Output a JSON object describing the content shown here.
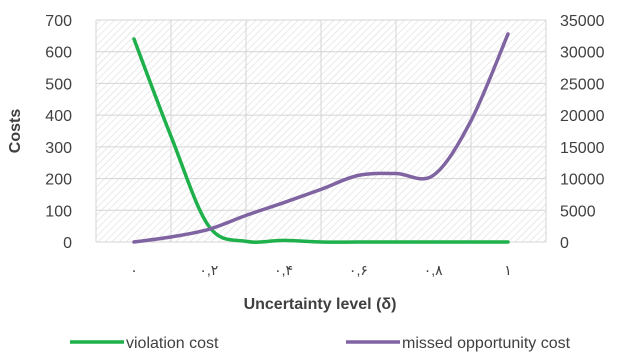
{
  "chart_data": {
    "type": "line",
    "title": "",
    "xlabel": "Uncertainty level (δ)",
    "ylabel": "Costs",
    "y2label": "",
    "x_tick_labels": [
      "٠",
      "٠,٢",
      "٠,۴",
      "٠,۶",
      "٠,٨",
      "١"
    ],
    "x": [
      0,
      0.1,
      0.2,
      0.3,
      0.4,
      0.5,
      0.6,
      0.7,
      0.8,
      0.9,
      1.0
    ],
    "xlim": [
      0,
      1
    ],
    "ylim": [
      0,
      700
    ],
    "y_ticks": [
      0,
      100,
      200,
      300,
      400,
      500,
      600,
      700
    ],
    "y2lim": [
      0,
      35000
    ],
    "y2_ticks": [
      0,
      5000,
      10000,
      15000,
      20000,
      25000,
      30000,
      35000
    ],
    "grid": true,
    "legend_position": "bottom",
    "series": [
      {
        "name": "violation cost",
        "axis": "left",
        "color": "#1eb04a",
        "values": [
          640,
          330,
          50,
          2,
          5,
          0,
          0,
          0,
          0,
          0,
          0
        ]
      },
      {
        "name": "missed opportunity cost",
        "axis": "right",
        "color": "#8064a2",
        "values": [
          0,
          800,
          2000,
          4200,
          6200,
          8300,
          10500,
          10800,
          10500,
          19000,
          32800
        ]
      }
    ]
  }
}
